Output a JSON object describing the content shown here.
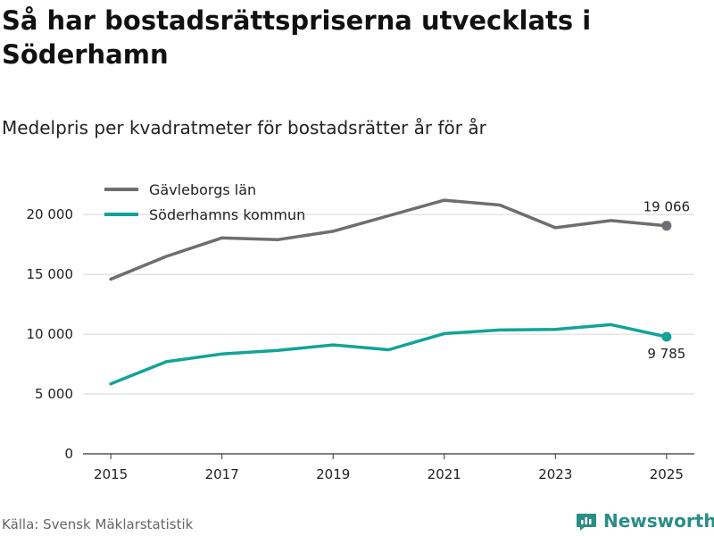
{
  "chart_data": {
    "type": "line",
    "title": "Så har bostadsrättspriserna utvecklats i Söderhamn",
    "subtitle": "Medelpris per kvadratmeter för bostadsrätter år för år",
    "xlabel": "",
    "ylabel": "",
    "x": [
      2015,
      2016,
      2017,
      2018,
      2019,
      2020,
      2021,
      2022,
      2023,
      2024,
      2025
    ],
    "x_ticks": [
      "2015",
      "2017",
      "2019",
      "2021",
      "2023",
      "2025"
    ],
    "xlim": [
      2014.5,
      2025.5
    ],
    "ylim": [
      0,
      23000
    ],
    "y_ticks": [
      0,
      5000,
      10000,
      15000,
      20000
    ],
    "y_tick_labels": [
      "0",
      "5 000",
      "10 000",
      "15 000",
      "20 000"
    ],
    "grid": true,
    "legend_position": "top-left",
    "series": [
      {
        "name": "Gävleborgs län",
        "color": "#6e6d72",
        "values": [
          14600,
          16500,
          18050,
          17900,
          18600,
          19900,
          21200,
          20800,
          18900,
          19500,
          19066
        ],
        "end_label": "19 066"
      },
      {
        "name": "Söderhamns kommun",
        "color": "#12a39a",
        "values": [
          5850,
          7700,
          8350,
          8650,
          9100,
          8700,
          10050,
          10350,
          10400,
          10800,
          9785
        ],
        "end_label": "9 785"
      }
    ]
  },
  "footer": {
    "source": "Källa: Svensk Mäklarstatistik",
    "brand": "Newsworthy",
    "brand_color": "#2a8d86"
  }
}
